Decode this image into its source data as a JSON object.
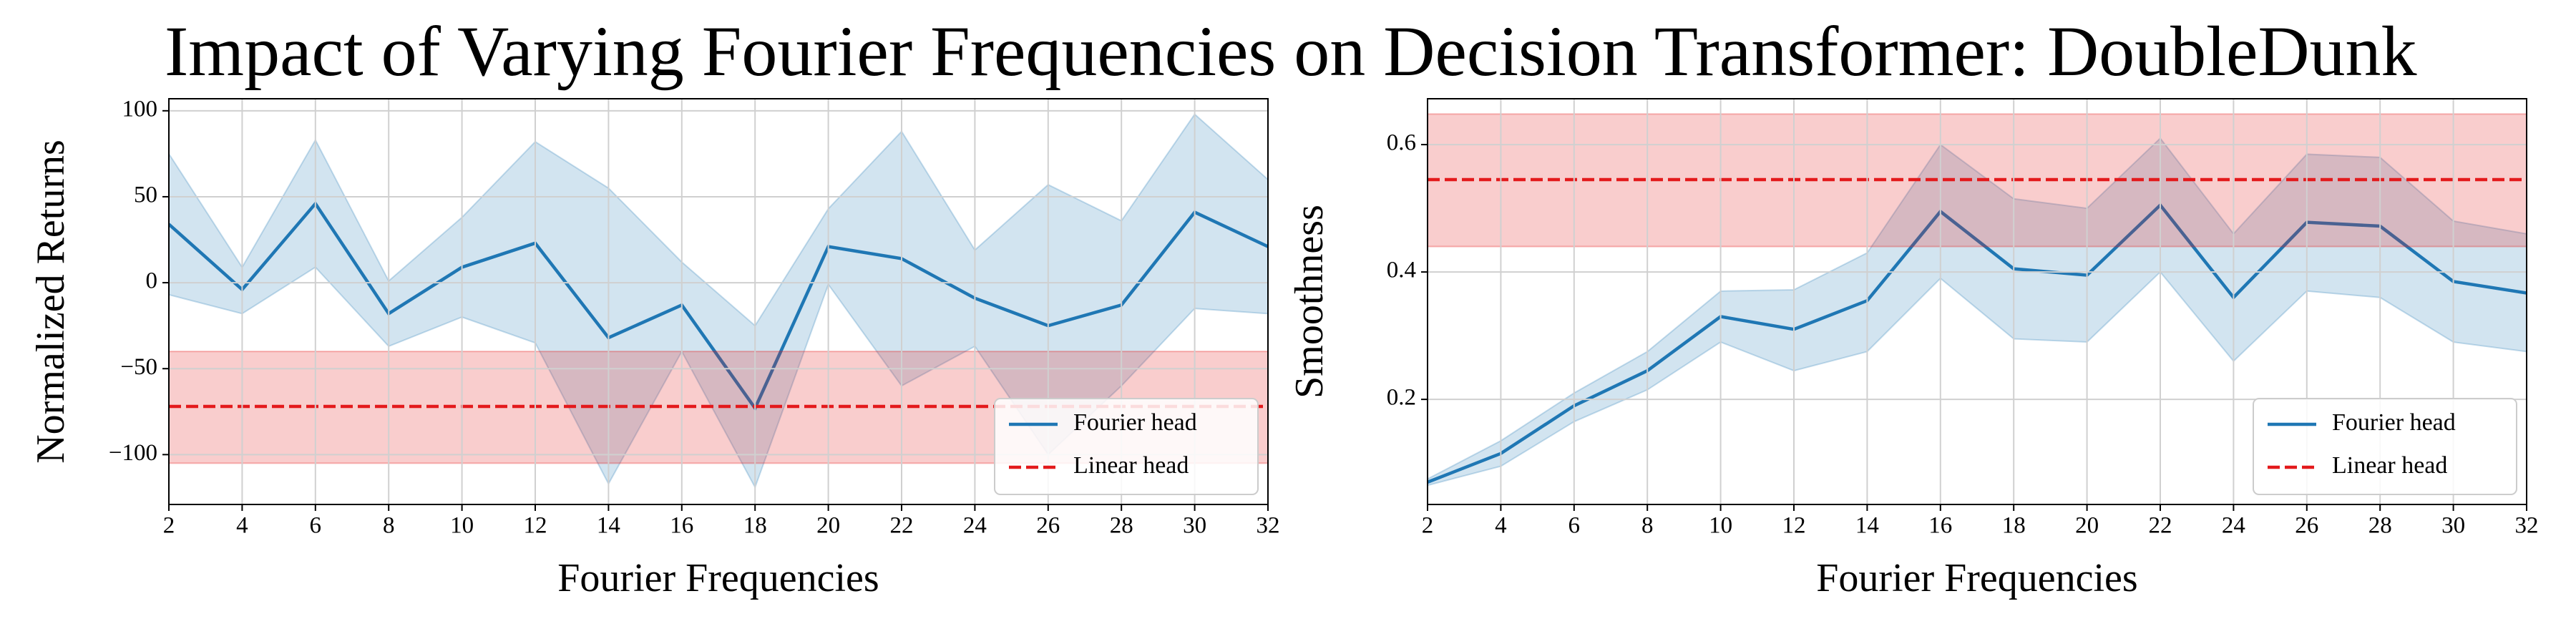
{
  "title": "Impact of Varying Fourier Frequencies on Decision Transformer: DoubleDunk",
  "chart_data": [
    {
      "type": "line",
      "xlabel": "Fourier Frequencies",
      "ylabel": "Normalized Returns",
      "x": [
        2,
        4,
        6,
        8,
        10,
        12,
        14,
        16,
        18,
        20,
        22,
        24,
        26,
        28,
        30,
        32
      ],
      "xlim": [
        2,
        32
      ],
      "xticks": [
        2,
        4,
        6,
        8,
        10,
        12,
        14,
        16,
        18,
        20,
        22,
        24,
        26,
        28,
        30,
        32
      ],
      "ylim": [
        -129,
        107
      ],
      "yticks": [
        {
          "value": -100,
          "label": "−100"
        },
        {
          "value": -50,
          "label": "−50"
        },
        0,
        50,
        100
      ],
      "grid": true,
      "legend": "lower right",
      "series": [
        {
          "name": "Fourier head",
          "color": "#1f77b4",
          "values": [
            34,
            -4,
            46,
            -18,
            9,
            23,
            -32,
            -13,
            -73,
            21,
            14,
            -9,
            -25,
            -13,
            41,
            21
          ],
          "upper": [
            75,
            9,
            83,
            1,
            38,
            82,
            55,
            12,
            -25,
            43,
            88,
            19,
            57,
            36,
            98,
            60
          ],
          "lower": [
            -7,
            -18,
            9,
            -37,
            -20,
            -35,
            -117,
            -40,
            -119,
            -1,
            -60,
            -37,
            -100,
            -60,
            -15,
            -18
          ]
        },
        {
          "name": "Linear head",
          "color": "#e31a1c",
          "constant": true,
          "value": -72,
          "upper": -40,
          "lower": -105
        }
      ]
    },
    {
      "type": "line",
      "xlabel": "Fourier Frequencies",
      "ylabel": "Smoothness",
      "x": [
        2,
        4,
        6,
        8,
        10,
        12,
        14,
        16,
        18,
        20,
        22,
        24,
        26,
        28,
        30,
        32
      ],
      "xlim": [
        2,
        32
      ],
      "xticks": [
        2,
        4,
        6,
        8,
        10,
        12,
        14,
        16,
        18,
        20,
        22,
        24,
        26,
        28,
        30,
        32
      ],
      "ylim": [
        0.035,
        0.672
      ],
      "yticks": [
        0.2,
        0.4,
        0.6
      ],
      "grid": true,
      "legend": "lower right",
      "series": [
        {
          "name": "Fourier head",
          "color": "#1f77b4",
          "values": [
            0.07,
            0.115,
            0.19,
            0.245,
            0.33,
            0.31,
            0.355,
            0.495,
            0.405,
            0.395,
            0.505,
            0.36,
            0.478,
            0.472,
            0.385,
            0.367
          ],
          "upper": [
            0.075,
            0.135,
            0.21,
            0.275,
            0.37,
            0.372,
            0.43,
            0.6,
            0.515,
            0.5,
            0.61,
            0.46,
            0.585,
            0.58,
            0.48,
            0.46
          ],
          "lower": [
            0.065,
            0.095,
            0.165,
            0.215,
            0.29,
            0.245,
            0.275,
            0.39,
            0.295,
            0.29,
            0.4,
            0.26,
            0.37,
            0.36,
            0.29,
            0.275
          ]
        },
        {
          "name": "Linear head",
          "color": "#e31a1c",
          "constant": true,
          "value": 0.545,
          "upper": 0.648,
          "lower": 0.44
        }
      ]
    }
  ]
}
